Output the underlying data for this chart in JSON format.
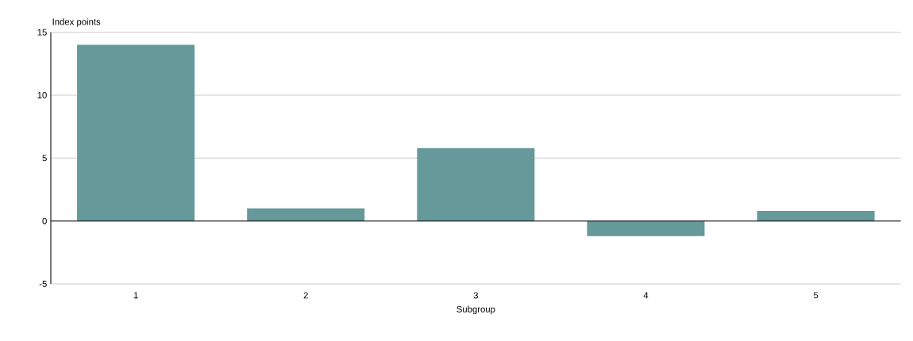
{
  "chart_data": {
    "type": "bar",
    "ylabel": "Index points",
    "xlabel": "Subgroup",
    "categories": [
      "1",
      "2",
      "3",
      "4",
      "5"
    ],
    "values": [
      14.0,
      1.0,
      5.8,
      -1.2,
      0.8
    ],
    "color": "#669999",
    "ylim": [
      -5,
      15
    ],
    "yticks": [
      -5,
      0,
      5,
      10,
      15
    ],
    "grid": "y"
  }
}
